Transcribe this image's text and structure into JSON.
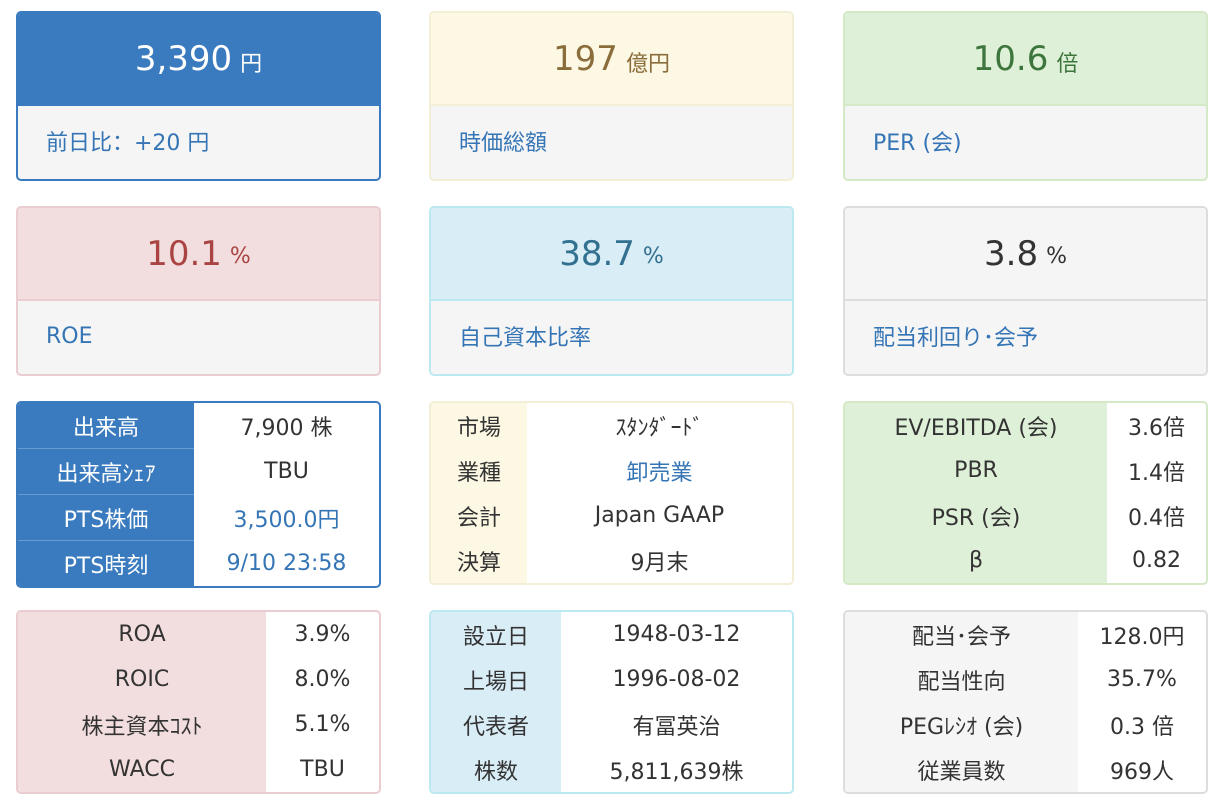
{
  "cards": [
    {
      "value": "3,390",
      "unit": "円",
      "label": "前日比：+20 円"
    },
    {
      "value": "197",
      "unit": "億円",
      "label": "時価総額"
    },
    {
      "value": "10.6",
      "unit": "倍",
      "label": "PER (会)"
    },
    {
      "value": "10.1",
      "unit": "%",
      "label": "ROE"
    },
    {
      "value": "38.7",
      "unit": "%",
      "label": "自己資本比率"
    },
    {
      "value": "3.8",
      "unit": "%",
      "label": "配当利回り･会予"
    }
  ],
  "trading_table": [
    {
      "label": "出来高",
      "value": "7,900 株"
    },
    {
      "label": "出来高ｼｪｱ",
      "value": "TBU"
    },
    {
      "label": "PTS株価",
      "value": "3,500.0円"
    },
    {
      "label": "PTS時刻",
      "value": "9/10 23:58"
    }
  ],
  "company_table": [
    {
      "label": "市場",
      "value": "ｽﾀﾝﾀﾞｰﾄﾞ"
    },
    {
      "label": "業種",
      "value": "卸売業"
    },
    {
      "label": "会計",
      "value": "Japan GAAP"
    },
    {
      "label": "決算",
      "value": "9月末"
    }
  ],
  "valuation_table": [
    {
      "label": "EV/EBITDA (会)",
      "value": "3.6倍"
    },
    {
      "label": "PBR",
      "value": "1.4倍"
    },
    {
      "label": "PSR (会)",
      "value": "0.4倍"
    },
    {
      "label": "β",
      "value": "0.82"
    }
  ],
  "return_table": [
    {
      "label": "ROA",
      "value": "3.9%"
    },
    {
      "label": "ROIC",
      "value": "8.0%"
    },
    {
      "label": "株主資本ｺｽﾄ",
      "value": "5.1%"
    },
    {
      "label": "WACC",
      "value": "TBU"
    }
  ],
  "profile_table": [
    {
      "label": "設立日",
      "value": "1948-03-12"
    },
    {
      "label": "上場日",
      "value": "1996-08-02"
    },
    {
      "label": "代表者",
      "value": "有冨英治"
    },
    {
      "label": "株数",
      "value": "5,811,639株"
    }
  ],
  "dividend_table": [
    {
      "label": "配当･会予",
      "value": "128.0円"
    },
    {
      "label": "配当性向",
      "value": "35.7%"
    },
    {
      "label": "PEGﾚｼｵ (会)",
      "value": "0.3 倍"
    },
    {
      "label": "従業員数",
      "value": "969人"
    }
  ]
}
